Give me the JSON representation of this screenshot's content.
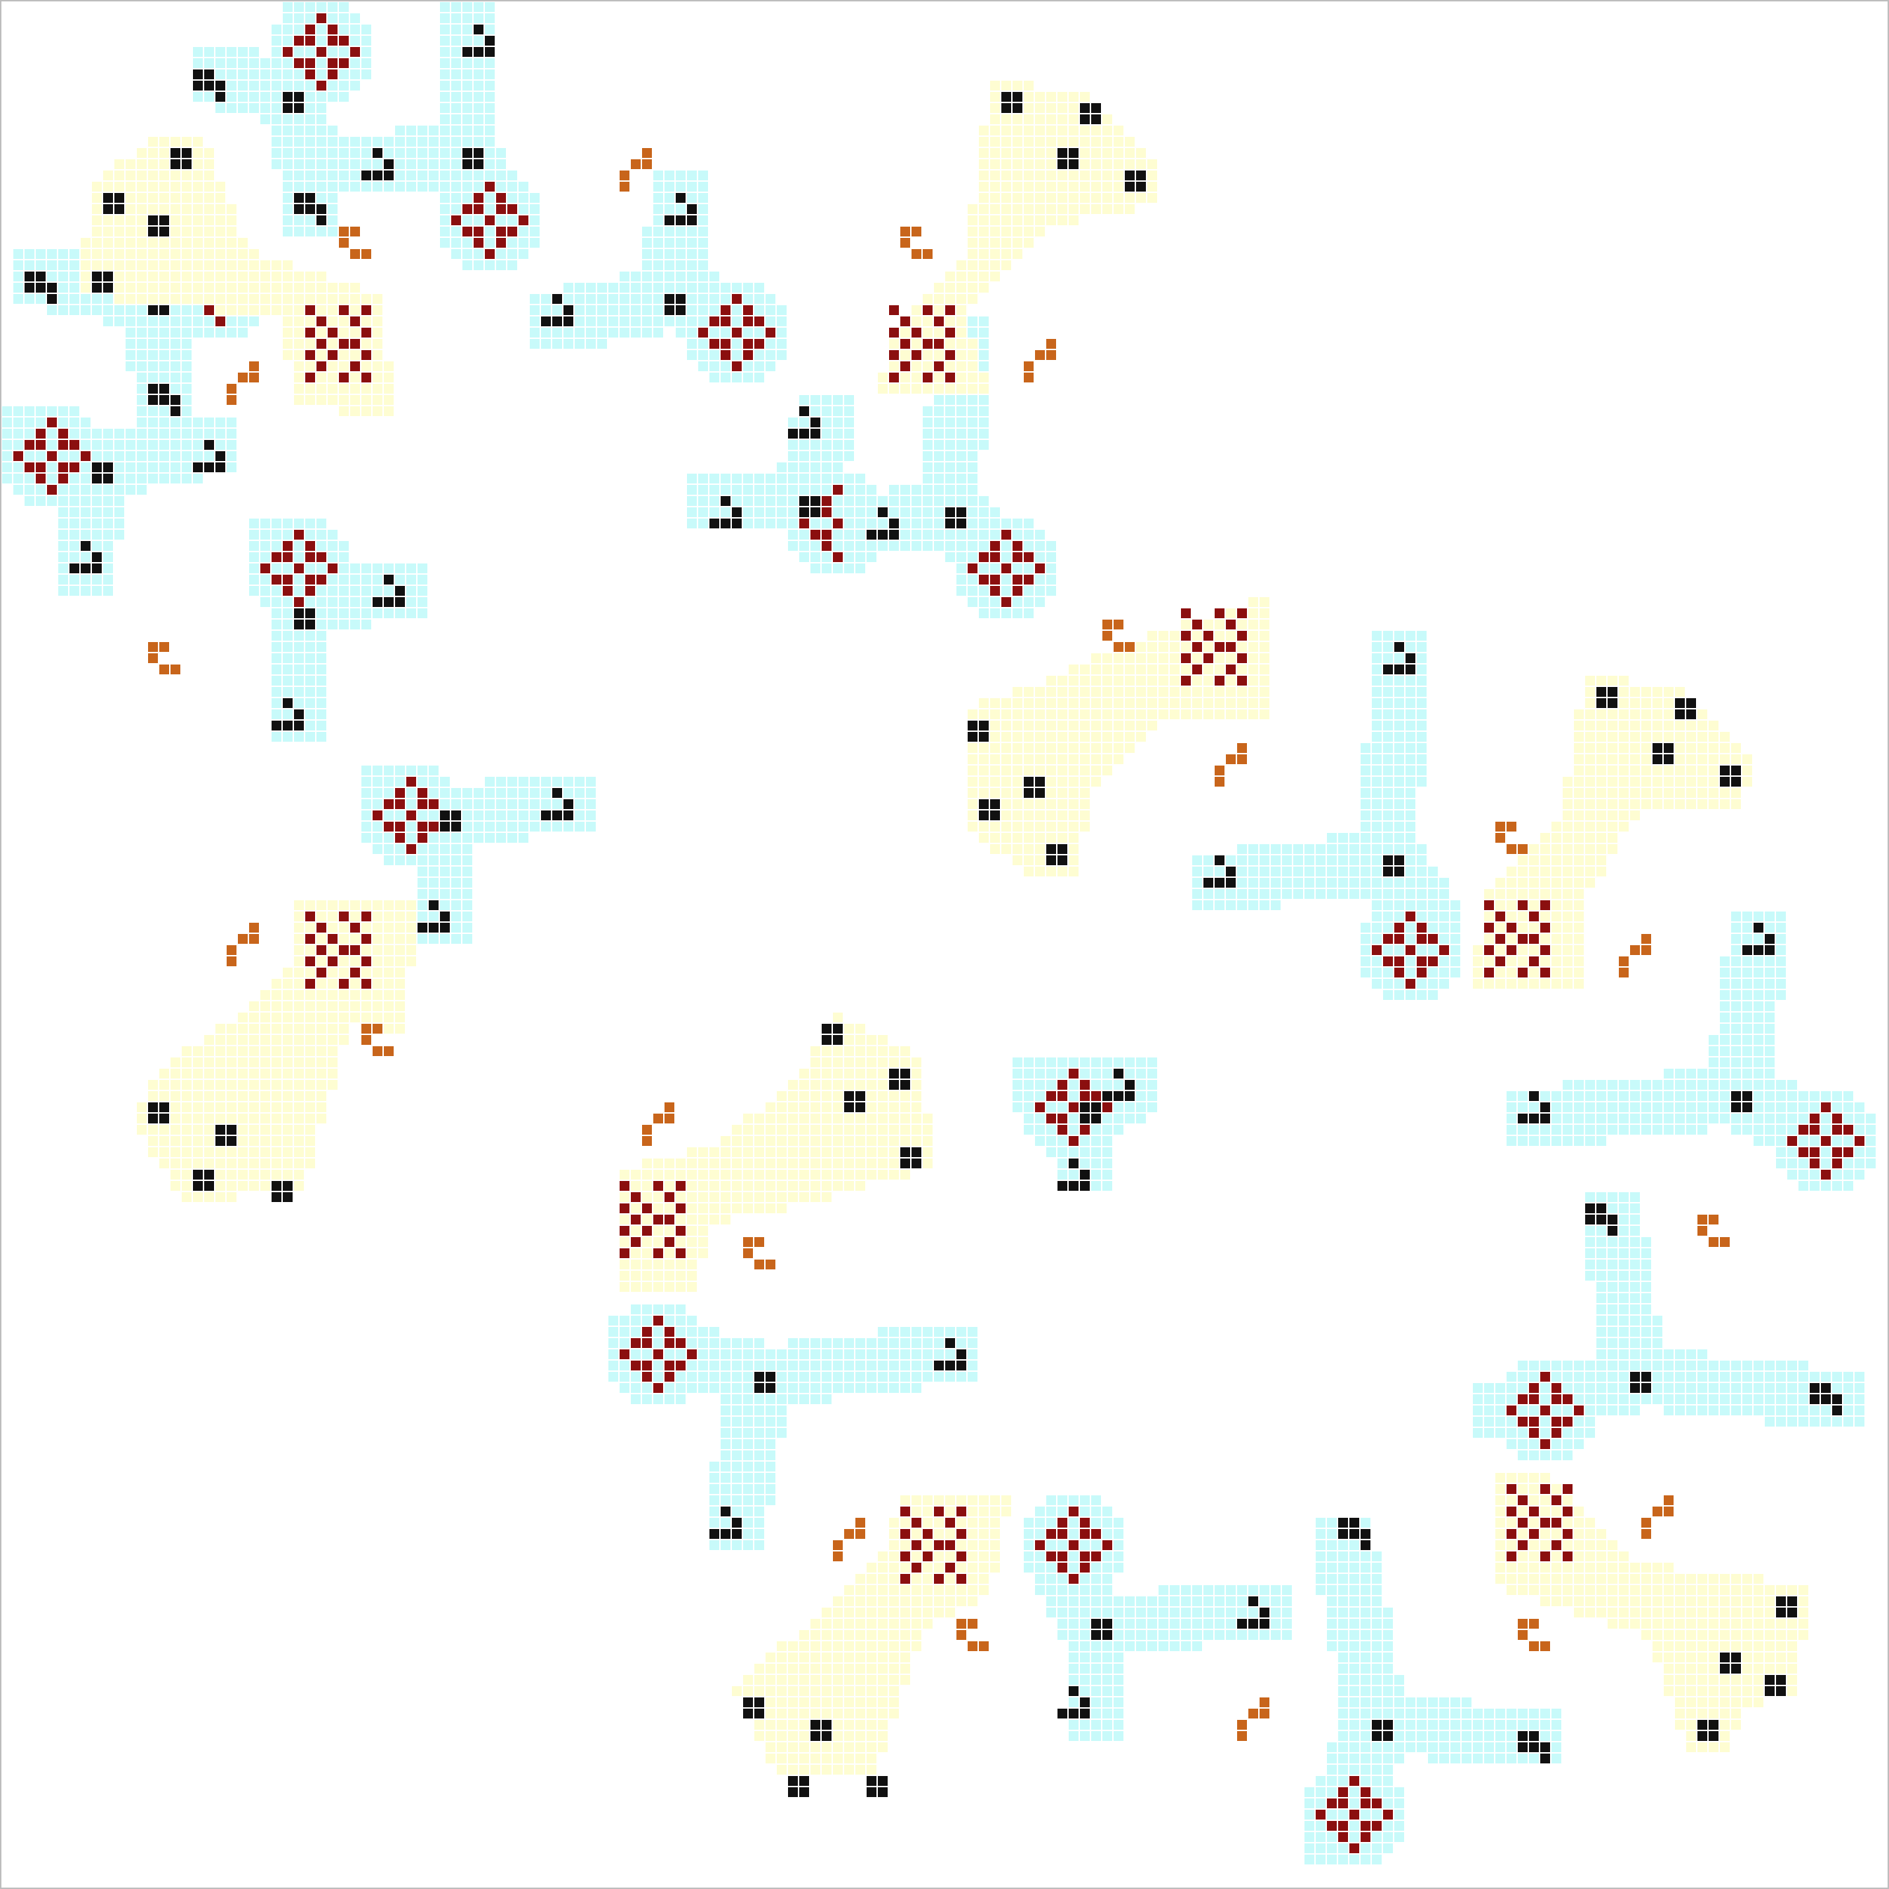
{
  "board": {
    "cols": 168,
    "rows": 168,
    "background": "#ffffff",
    "border_color": "#bdbdbd"
  },
  "palette": {
    "cyan_region": "#c8fafa",
    "yellow_region": "#fefdd2",
    "black_cell": "#111111",
    "red_cell": "#8b0f0f",
    "orange_cell": "#c8651b"
  }
}
